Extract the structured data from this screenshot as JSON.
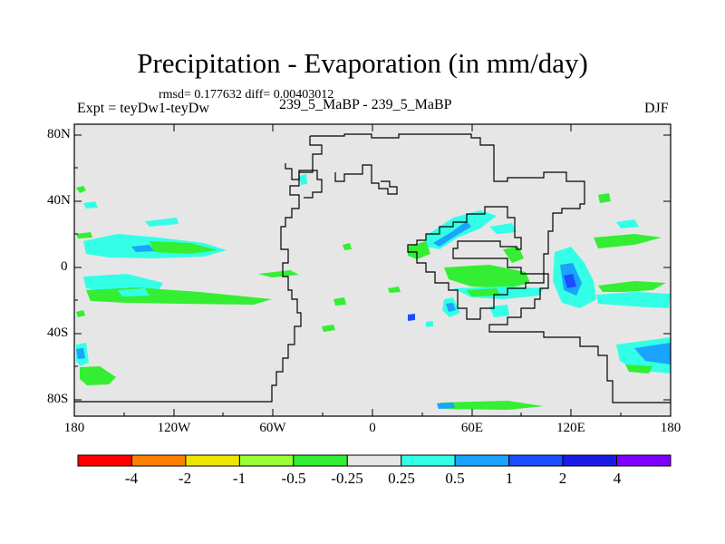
{
  "title": "Precipitation - Evaporation (in mm/day)",
  "stats": "rmsd= 0.177632  diff= 0.00403012",
  "experiment": "Expt = teyDw1-teyDw",
  "center_label": "239_5_MaBP - 239_5_MaBP",
  "season": "DJF",
  "lat_labels": [
    "80N",
    "40N",
    "0",
    "40S",
    "80S"
  ],
  "lon_labels": [
    "180",
    "120W",
    "60W",
    "0",
    "60E",
    "120E",
    "180"
  ],
  "colorbar": {
    "labels": [
      "-4",
      "-2",
      "-1",
      "-0.5",
      "-0.25",
      "0.25",
      "0.5",
      "1",
      "2",
      "4"
    ],
    "colors": [
      "#ff0000",
      "#ff8000",
      "#ede600",
      "#99ff33",
      "#33ee33",
      "#e6e6e6",
      "#33ffe6",
      "#1aa3ff",
      "#1a4dff",
      "#1a1ae6",
      "#8000ff"
    ]
  },
  "map_colors": {
    "land_sea": "#e6e6e6",
    "coast": "#000000"
  }
}
